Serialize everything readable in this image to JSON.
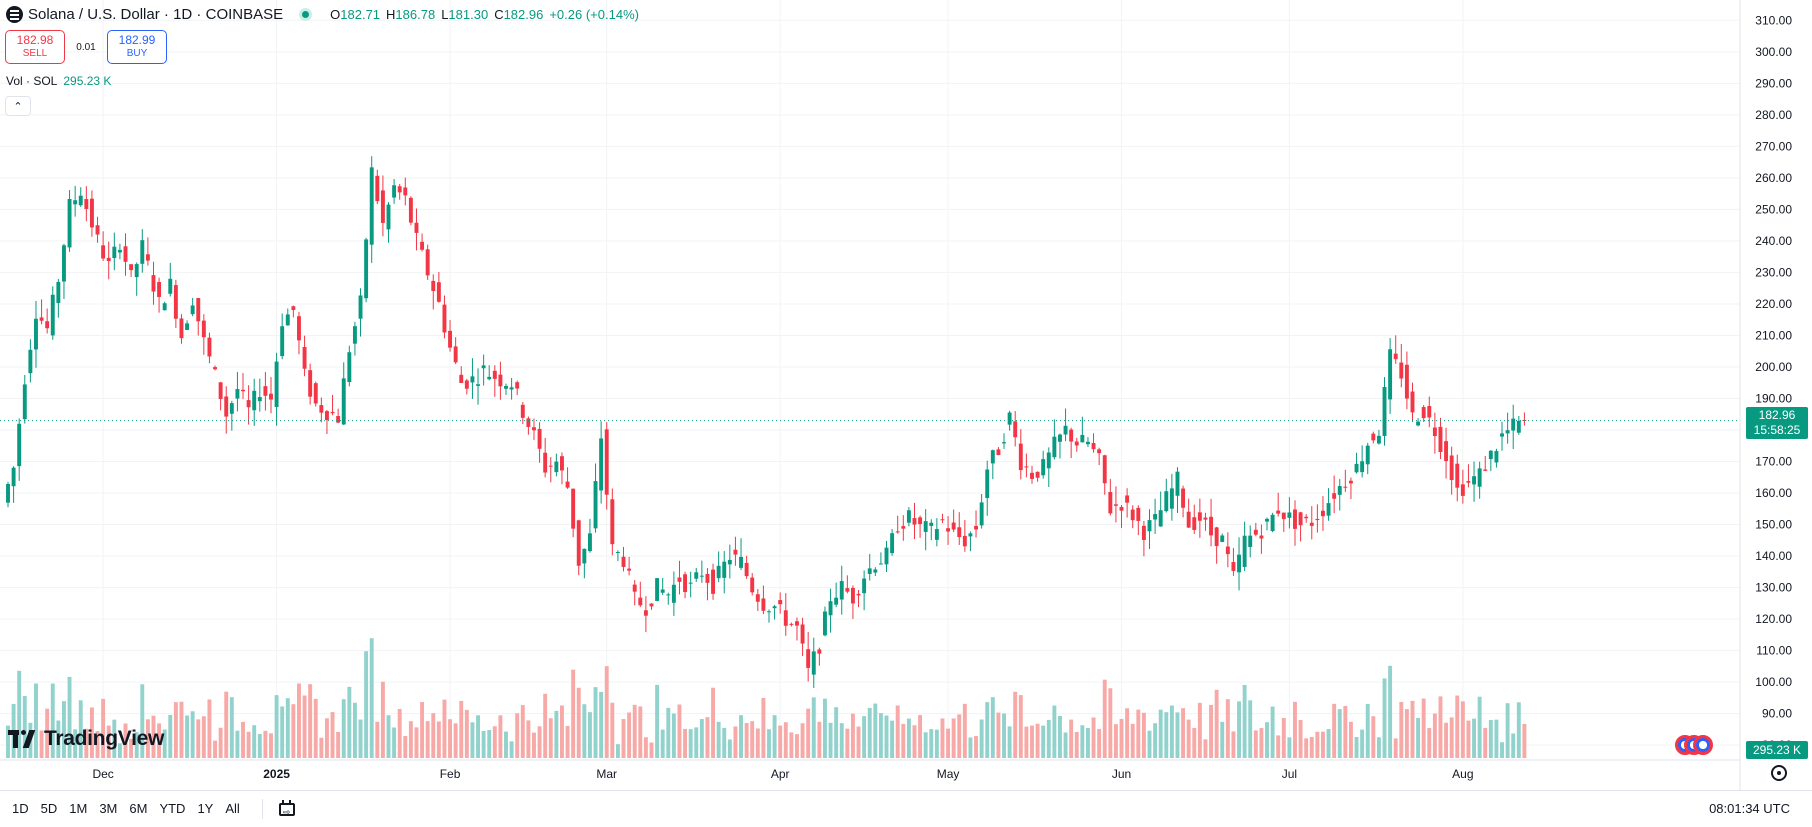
{
  "symbol": {
    "name": "Solana / U.S. Dollar",
    "interval": "1D",
    "exchange": "COINBASE",
    "open_label": "O",
    "open": "182.71",
    "high_label": "H",
    "high": "186.78",
    "low_label": "L",
    "low": "181.30",
    "close_label": "C",
    "close": "182.96",
    "change": "+0.26 (+0.14%)"
  },
  "trade": {
    "sell_price": "182.98",
    "sell_label": "SELL",
    "spread": "0.01",
    "buy_price": "182.99",
    "buy_label": "BUY"
  },
  "volume_legend": {
    "label": "Vol · SOL",
    "value": "295.23 K"
  },
  "brand": {
    "name": "TradingView"
  },
  "price_tag": {
    "price": "182.96",
    "countdown": "15:58:25"
  },
  "volume_tag": "295.23 K",
  "toolbar": {
    "ranges": [
      "1D",
      "5D",
      "1M",
      "3M",
      "6M",
      "YTD",
      "1Y",
      "All"
    ],
    "clock": "08:01:34 UTC"
  },
  "colors": {
    "up": "#089981",
    "down": "#f23645",
    "volume_up": "#92d2cc",
    "volume_down": "#f7a9a7",
    "grid": "#f2f3f5",
    "axis_text": "#131722"
  },
  "icons": {
    "symbol_logo": "solana-logo-icon",
    "live": "market-open-dot-icon",
    "collapse": "chevron-up-icon",
    "events": "economic-events-flags-icon",
    "settings": "settings-icon",
    "goto_date": "calendar-goto-icon"
  },
  "chart_data": {
    "type": "candlestick",
    "title": "Solana / U.S. Dollar · 1D · COINBASE",
    "y_axis": {
      "position": "right",
      "range": [
        81,
        312
      ],
      "ticks": [
        310,
        300,
        290,
        280,
        270,
        260,
        250,
        240,
        230,
        220,
        210,
        200,
        190,
        180,
        170,
        160,
        150,
        140,
        130,
        120,
        110,
        100,
        90,
        80
      ],
      "tick_labels": [
        "310.00",
        "300.00",
        "290.00",
        "280.00",
        "270.00",
        "260.00",
        "250.00",
        "240.00",
        "230.00",
        "220.00",
        "210.00",
        "200.00",
        "190.00",
        "180.00",
        "170.00",
        "160.00",
        "150.00",
        "140.00",
        "130.00",
        "120.00",
        "110.00",
        "100.00",
        "90.00",
        "80.00"
      ]
    },
    "x_axis": {
      "labels": [
        "Dec",
        "2025",
        "Feb",
        "Mar",
        "Apr",
        "May",
        "Jun",
        "Jul",
        "Aug"
      ],
      "label_dates": [
        "2024-12-01",
        "2025-01-01",
        "2025-02-01",
        "2025-03-01",
        "2025-04-01",
        "2025-05-01",
        "2025-06-01",
        "2025-07-01",
        "2025-08-01"
      ],
      "start_date": "2024-11-14",
      "end_date": "2025-08-13"
    },
    "last_price": 182.96,
    "grid": true,
    "price_series": [
      [
        "2024-11-14",
        157
      ],
      [
        "2024-11-16",
        168
      ],
      [
        "2024-11-18",
        197
      ],
      [
        "2024-11-20",
        218
      ],
      [
        "2024-11-22",
        212
      ],
      [
        "2024-11-24",
        228
      ],
      [
        "2024-11-26",
        251
      ],
      [
        "2024-11-28",
        256
      ],
      [
        "2024-12-01",
        240
      ],
      [
        "2024-12-03",
        232
      ],
      [
        "2024-12-05",
        240
      ],
      [
        "2024-12-07",
        228
      ],
      [
        "2024-12-09",
        238
      ],
      [
        "2024-12-12",
        220
      ],
      [
        "2024-12-14",
        226
      ],
      [
        "2024-12-16",
        210
      ],
      [
        "2024-12-18",
        222
      ],
      [
        "2024-12-20",
        208
      ],
      [
        "2024-12-22",
        197
      ],
      [
        "2024-12-24",
        185
      ],
      [
        "2024-12-26",
        193
      ],
      [
        "2024-12-28",
        186
      ],
      [
        "2024-12-30",
        193
      ],
      [
        "2025-01-01",
        190
      ],
      [
        "2025-01-03",
        215
      ],
      [
        "2025-01-05",
        218
      ],
      [
        "2025-01-07",
        197
      ],
      [
        "2025-01-09",
        188
      ],
      [
        "2025-01-11",
        186
      ],
      [
        "2025-01-13",
        184
      ],
      [
        "2025-01-15",
        206
      ],
      [
        "2025-01-17",
        220
      ],
      [
        "2025-01-19",
        262
      ],
      [
        "2025-01-21",
        245
      ],
      [
        "2025-01-23",
        257
      ],
      [
        "2025-01-25",
        253
      ],
      [
        "2025-01-27",
        240
      ],
      [
        "2025-01-29",
        230
      ],
      [
        "2025-01-31",
        220
      ],
      [
        "2025-02-02",
        206
      ],
      [
        "2025-02-04",
        195
      ],
      [
        "2025-02-06",
        196
      ],
      [
        "2025-02-08",
        199
      ],
      [
        "2025-02-11",
        196
      ],
      [
        "2025-02-13",
        195
      ],
      [
        "2025-02-15",
        186
      ],
      [
        "2025-02-17",
        178
      ],
      [
        "2025-02-19",
        168
      ],
      [
        "2025-02-21",
        170
      ],
      [
        "2025-02-23",
        162
      ],
      [
        "2025-02-25",
        138
      ],
      [
        "2025-02-27",
        146
      ],
      [
        "2025-03-01",
        178
      ],
      [
        "2025-03-03",
        142
      ],
      [
        "2025-03-05",
        139
      ],
      [
        "2025-03-07",
        126
      ],
      [
        "2025-03-09",
        124
      ],
      [
        "2025-03-11",
        130
      ],
      [
        "2025-03-13",
        128
      ],
      [
        "2025-03-15",
        133
      ],
      [
        "2025-03-17",
        130
      ],
      [
        "2025-03-19",
        135
      ],
      [
        "2025-03-21",
        131
      ],
      [
        "2025-03-24",
        140
      ],
      [
        "2025-03-26",
        138
      ],
      [
        "2025-03-28",
        130
      ],
      [
        "2025-03-30",
        125
      ],
      [
        "2025-04-01",
        124
      ],
      [
        "2025-04-03",
        120
      ],
      [
        "2025-04-05",
        117
      ],
      [
        "2025-04-07",
        103
      ],
      [
        "2025-04-09",
        112
      ],
      [
        "2025-04-11",
        127
      ],
      [
        "2025-04-13",
        130
      ],
      [
        "2025-04-15",
        127
      ],
      [
        "2025-04-17",
        134
      ],
      [
        "2025-04-19",
        138
      ],
      [
        "2025-04-21",
        140
      ],
      [
        "2025-04-23",
        150
      ],
      [
        "2025-04-25",
        152
      ],
      [
        "2025-04-27",
        149
      ],
      [
        "2025-04-29",
        148
      ],
      [
        "2025-05-01",
        151
      ],
      [
        "2025-05-03",
        147
      ],
      [
        "2025-05-05",
        145
      ],
      [
        "2025-05-07",
        149
      ],
      [
        "2025-05-09",
        168
      ],
      [
        "2025-05-11",
        174
      ],
      [
        "2025-05-13",
        184
      ],
      [
        "2025-05-15",
        170
      ],
      [
        "2025-05-17",
        166
      ],
      [
        "2025-05-19",
        168
      ],
      [
        "2025-05-21",
        175
      ],
      [
        "2025-05-23",
        180
      ],
      [
        "2025-05-25",
        176
      ],
      [
        "2025-05-27",
        176
      ],
      [
        "2025-05-29",
        170
      ],
      [
        "2025-05-31",
        155
      ],
      [
        "2025-06-02",
        157
      ],
      [
        "2025-06-04",
        153
      ],
      [
        "2025-06-06",
        148
      ],
      [
        "2025-06-08",
        151
      ],
      [
        "2025-06-10",
        158
      ],
      [
        "2025-06-12",
        164
      ],
      [
        "2025-06-14",
        150
      ],
      [
        "2025-06-16",
        152
      ],
      [
        "2025-06-18",
        147
      ],
      [
        "2025-06-20",
        145
      ],
      [
        "2025-06-22",
        133
      ],
      [
        "2025-06-24",
        145
      ],
      [
        "2025-06-26",
        147
      ],
      [
        "2025-06-28",
        150
      ],
      [
        "2025-06-30",
        155
      ],
      [
        "2025-07-02",
        152
      ],
      [
        "2025-07-04",
        150
      ],
      [
        "2025-07-06",
        151
      ],
      [
        "2025-07-08",
        155
      ],
      [
        "2025-07-10",
        160
      ],
      [
        "2025-07-12",
        164
      ],
      [
        "2025-07-14",
        168
      ],
      [
        "2025-07-16",
        176
      ],
      [
        "2025-07-18",
        180
      ],
      [
        "2025-07-20",
        203
      ],
      [
        "2025-07-22",
        198
      ],
      [
        "2025-07-24",
        184
      ],
      [
        "2025-07-26",
        186
      ],
      [
        "2025-07-28",
        180
      ],
      [
        "2025-07-30",
        172
      ],
      [
        "2025-08-01",
        161
      ],
      [
        "2025-08-03",
        163
      ],
      [
        "2025-08-05",
        166
      ],
      [
        "2025-08-07",
        172
      ],
      [
        "2025-08-09",
        178
      ],
      [
        "2025-08-11",
        181
      ],
      [
        "2025-08-13",
        183
      ]
    ],
    "volume_last": "295.23 K"
  }
}
